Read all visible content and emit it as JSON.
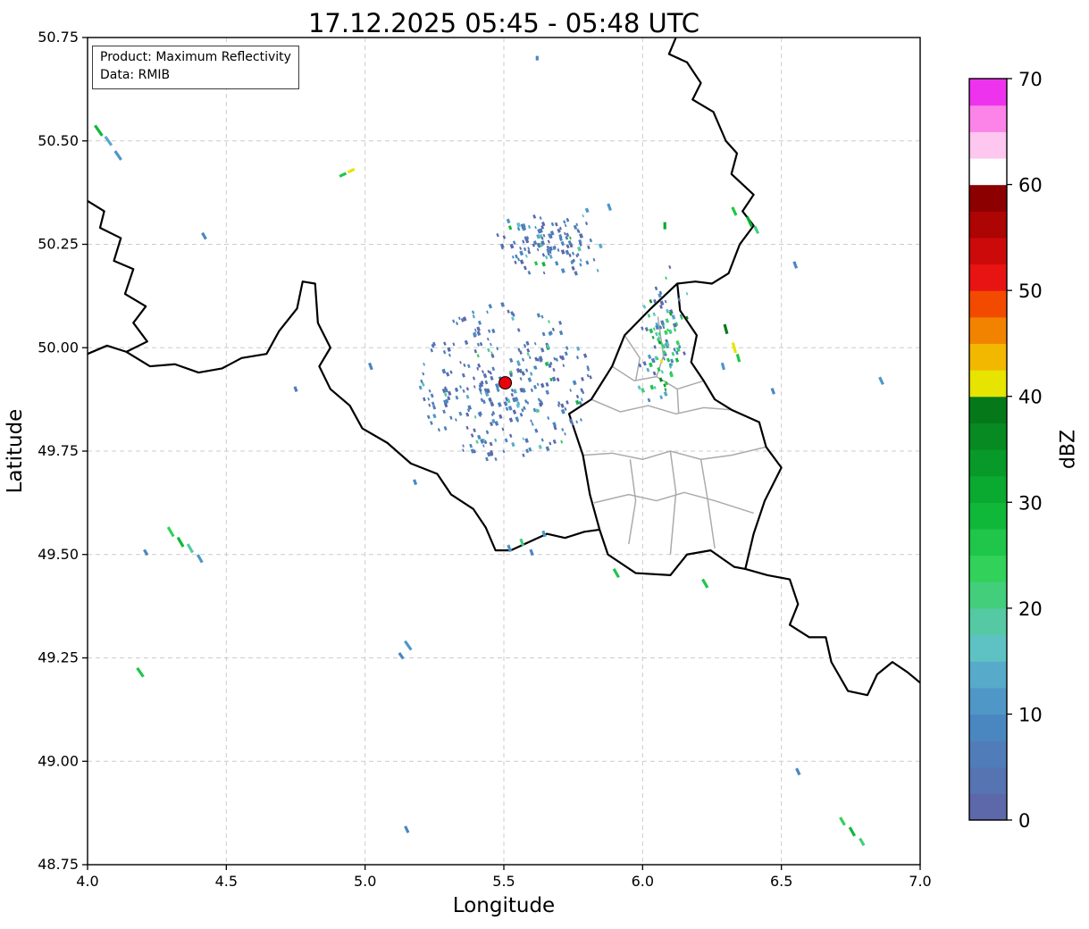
{
  "title": "17.12.2025 05:45 - 05:48 UTC",
  "info_box": {
    "line1": "Product: Maximum Reflectivity",
    "line2": "Data: RMIB"
  },
  "axes": {
    "xlabel": "Longitude",
    "ylabel": "Latitude",
    "xlim": [
      4.0,
      7.0
    ],
    "ylim": [
      48.75,
      50.75
    ],
    "xtick_values": [
      4.0,
      4.5,
      5.0,
      5.5,
      6.0,
      6.5,
      7.0
    ],
    "xtick_labels": [
      "4.0",
      "4.5",
      "5.0",
      "5.5",
      "6.0",
      "6.5",
      "7.0"
    ],
    "ytick_values": [
      48.75,
      49.0,
      49.25,
      49.5,
      49.75,
      50.0,
      50.25,
      50.5,
      50.75
    ],
    "ytick_labels": [
      "48.75",
      "49.00",
      "49.25",
      "49.50",
      "49.75",
      "50.00",
      "50.25",
      "50.50",
      "50.75"
    ],
    "grid": true
  },
  "colorbar": {
    "label": "dBZ",
    "vmin": 0,
    "vmax": 70,
    "step": 2.5,
    "ticks": [
      0,
      10,
      20,
      30,
      40,
      50,
      60,
      70
    ],
    "colors": [
      "#5c68a9",
      "#5673b2",
      "#507dba",
      "#4a87c1",
      "#4f97c6",
      "#57aac9",
      "#5ec2c4",
      "#55c9a3",
      "#43ce7c",
      "#32d25a",
      "#1fc649",
      "#10b83a",
      "#0aa930",
      "#089a29",
      "#068a21",
      "#05791a",
      "#e6e400",
      "#f2b800",
      "#f28300",
      "#f24b00",
      "#e81414",
      "#cc0a0a",
      "#ad0404",
      "#8c0000",
      "#ffffff",
      "#fec7ef",
      "#fc83e8",
      "#ee33ee"
    ]
  },
  "colors": {
    "radar_marker": "#e8000b",
    "grid": "#cccccc",
    "country_border": "#000000",
    "canton_border": "#ababab",
    "background": "#ffffff"
  },
  "chart_data": {
    "type": "scatter",
    "title": "17.12.2025 05:45 - 05:48 UTC",
    "xlabel": "Longitude",
    "ylabel": "Latitude",
    "xlim": [
      4.0,
      7.0
    ],
    "ylim": [
      48.75,
      50.75
    ],
    "value_unit": "dBZ",
    "value_range": [
      0,
      70
    ],
    "radar_site": {
      "lon": 5.505,
      "lat": 49.915
    },
    "echoes": [
      {
        "lon": 4.04,
        "lat": 50.525,
        "dbz": 28,
        "len": 14,
        "rot": -35
      },
      {
        "lon": 4.075,
        "lat": 50.5,
        "dbz": 14,
        "len": 12,
        "rot": -35
      },
      {
        "lon": 4.11,
        "lat": 50.465,
        "dbz": 10,
        "len": 12,
        "rot": -35
      },
      {
        "lon": 4.42,
        "lat": 50.27,
        "dbz": 8,
        "len": 8,
        "rot": -30
      },
      {
        "lon": 4.95,
        "lat": 50.428,
        "dbz": 40,
        "len": 8,
        "rot": 65
      },
      {
        "lon": 4.92,
        "lat": 50.418,
        "dbz": 25,
        "len": 8,
        "rot": 65
      },
      {
        "lon": 5.62,
        "lat": 50.7,
        "dbz": 8,
        "len": 5,
        "rot": 0
      },
      {
        "lon": 5.88,
        "lat": 50.34,
        "dbz": 10,
        "len": 8,
        "rot": -20
      },
      {
        "lon": 6.08,
        "lat": 50.295,
        "dbz": 30,
        "len": 8,
        "rot": 0
      },
      {
        "lon": 6.33,
        "lat": 50.33,
        "dbz": 27,
        "len": 10,
        "rot": -25
      },
      {
        "lon": 6.385,
        "lat": 50.305,
        "dbz": 30,
        "len": 12,
        "rot": -25
      },
      {
        "lon": 6.41,
        "lat": 50.285,
        "dbz": 22,
        "len": 9,
        "rot": -25
      },
      {
        "lon": 6.55,
        "lat": 50.2,
        "dbz": 9,
        "len": 8,
        "rot": -20
      },
      {
        "lon": 6.3,
        "lat": 50.045,
        "dbz": 38,
        "len": 11,
        "rot": -15
      },
      {
        "lon": 6.33,
        "lat": 50.0,
        "dbz": 42,
        "len": 12,
        "rot": -15
      },
      {
        "lon": 6.345,
        "lat": 49.975,
        "dbz": 25,
        "len": 9,
        "rot": -15
      },
      {
        "lon": 6.29,
        "lat": 49.955,
        "dbz": 12,
        "len": 8,
        "rot": -15
      },
      {
        "lon": 6.86,
        "lat": 49.92,
        "dbz": 10,
        "len": 9,
        "rot": -25
      },
      {
        "lon": 5.02,
        "lat": 49.955,
        "dbz": 9,
        "len": 8,
        "rot": -20
      },
      {
        "lon": 4.75,
        "lat": 49.9,
        "dbz": 7,
        "len": 6,
        "rot": -20
      },
      {
        "lon": 5.18,
        "lat": 49.675,
        "dbz": 8,
        "len": 6,
        "rot": -20
      },
      {
        "lon": 6.47,
        "lat": 49.895,
        "dbz": 9,
        "len": 7,
        "rot": -20
      },
      {
        "lon": 4.3,
        "lat": 49.555,
        "dbz": 24,
        "len": 12,
        "rot": -30
      },
      {
        "lon": 4.335,
        "lat": 49.53,
        "dbz": 28,
        "len": 12,
        "rot": -30
      },
      {
        "lon": 4.37,
        "lat": 49.515,
        "dbz": 18,
        "len": 11,
        "rot": -30
      },
      {
        "lon": 4.405,
        "lat": 49.49,
        "dbz": 12,
        "len": 10,
        "rot": -30
      },
      {
        "lon": 4.21,
        "lat": 49.505,
        "dbz": 8,
        "len": 7,
        "rot": -30
      },
      {
        "lon": 4.19,
        "lat": 49.215,
        "dbz": 26,
        "len": 12,
        "rot": -35
      },
      {
        "lon": 5.155,
        "lat": 49.28,
        "dbz": 10,
        "len": 12,
        "rot": -35
      },
      {
        "lon": 5.13,
        "lat": 49.255,
        "dbz": 8,
        "len": 8,
        "rot": -35
      },
      {
        "lon": 5.52,
        "lat": 49.515,
        "dbz": 12,
        "len": 8,
        "rot": -20
      },
      {
        "lon": 5.565,
        "lat": 49.53,
        "dbz": 22,
        "len": 8,
        "rot": -20
      },
      {
        "lon": 5.6,
        "lat": 49.505,
        "dbz": 9,
        "len": 7,
        "rot": -20
      },
      {
        "lon": 5.645,
        "lat": 49.55,
        "dbz": 10,
        "len": 7,
        "rot": -20
      },
      {
        "lon": 5.905,
        "lat": 49.455,
        "dbz": 27,
        "len": 11,
        "rot": -30
      },
      {
        "lon": 6.225,
        "lat": 49.43,
        "dbz": 25,
        "len": 11,
        "rot": -30
      },
      {
        "lon": 6.56,
        "lat": 48.975,
        "dbz": 9,
        "len": 8,
        "rot": -25
      },
      {
        "lon": 6.72,
        "lat": 48.855,
        "dbz": 24,
        "len": 10,
        "rot": -30
      },
      {
        "lon": 6.755,
        "lat": 48.83,
        "dbz": 28,
        "len": 11,
        "rot": -30
      },
      {
        "lon": 6.79,
        "lat": 48.805,
        "dbz": 20,
        "len": 9,
        "rot": -30
      },
      {
        "lon": 5.15,
        "lat": 48.835,
        "dbz": 9,
        "len": 8,
        "rot": -25
      }
    ],
    "clusters": [
      {
        "name": "radar-ground-clutter",
        "kind": "annulus",
        "center": [
          5.505,
          49.915
        ],
        "rmin": 0.015,
        "rmax": 0.2,
        "count": 400,
        "seed": 7,
        "dbz_profile": "low"
      },
      {
        "name": "echo-field-northeast",
        "kind": "ellipse",
        "center": [
          5.66,
          50.255
        ],
        "rx": 0.145,
        "ry": 0.06,
        "count": 120,
        "seed": 13,
        "dbz_profile": "low"
      },
      {
        "name": "echo-field-east-border",
        "kind": "ellipse",
        "center": [
          6.08,
          50.03
        ],
        "rx": 0.07,
        "ry": 0.135,
        "count": 95,
        "seed": 21,
        "dbz_profile": "mixed"
      }
    ]
  }
}
